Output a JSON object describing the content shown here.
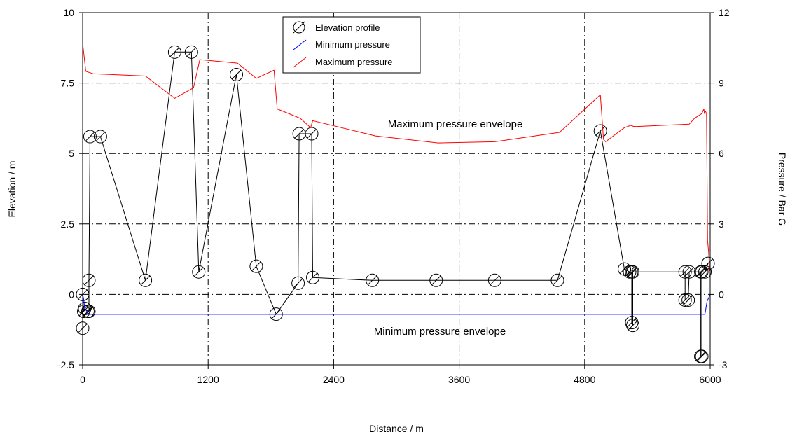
{
  "chart_data": {
    "type": "line",
    "title": "",
    "xlabel": "Distance / m",
    "ylabel_left": "Elevation / m",
    "ylabel_right": "Pressure / Bar G",
    "xlim": [
      0,
      6000
    ],
    "ylim_left": [
      -2.5,
      10
    ],
    "ylim_right": [
      -3,
      12
    ],
    "x_ticks": [
      "0",
      "1200",
      "2400",
      "3600",
      "4800",
      "6000"
    ],
    "y_left_ticks": [
      "-2.5",
      "0",
      "2.5",
      "5",
      "7.5",
      "10"
    ],
    "y_right_ticks": [
      "-3",
      "0",
      "3",
      "6",
      "9",
      "12"
    ],
    "grid": true,
    "legend_position": "top-center",
    "legend": [
      {
        "label": "Elevation profile",
        "color": "#000000"
      },
      {
        "label": "Minimum pressure",
        "color": "#0000ff"
      },
      {
        "label": "Maximum pressure",
        "color": "#ff0000"
      }
    ],
    "annotations": {
      "max_envelope": "Maximum pressure envelope",
      "min_envelope": "Minimum pressure envelope"
    },
    "series": [
      {
        "name": "Elevation profile",
        "axis": "left",
        "color": "#000000",
        "marker": "circle",
        "points": [
          [
            0,
            -1.2
          ],
          [
            0,
            0
          ],
          [
            10,
            -0.6
          ],
          [
            20,
            -0.5
          ],
          [
            50,
            -0.6
          ],
          [
            60,
            -0.6
          ],
          [
            60,
            0.5
          ],
          [
            70,
            5.6
          ],
          [
            170,
            5.6
          ],
          [
            600,
            0.5
          ],
          [
            880,
            8.6
          ],
          [
            1040,
            8.6
          ],
          [
            1110,
            0.8
          ],
          [
            1470,
            7.8
          ],
          [
            1660,
            1.0
          ],
          [
            1850,
            -0.7
          ],
          [
            2060,
            0.4
          ],
          [
            2070,
            5.7
          ],
          [
            2190,
            5.7
          ],
          [
            2200,
            0.6
          ],
          [
            2770,
            0.5
          ],
          [
            3380,
            0.5
          ],
          [
            3940,
            0.5
          ],
          [
            4540,
            0.5
          ],
          [
            4950,
            5.8
          ],
          [
            5180,
            0.9
          ],
          [
            5230,
            0.8
          ],
          [
            5250,
            0.8
          ],
          [
            5250,
            -1.0
          ],
          [
            5260,
            -1.1
          ],
          [
            5260,
            0.8
          ],
          [
            5760,
            0.8
          ],
          [
            5760,
            -0.2
          ],
          [
            5790,
            -0.2
          ],
          [
            5800,
            0.8
          ],
          [
            5910,
            0.8
          ],
          [
            5910,
            -2.2
          ],
          [
            5920,
            -2.2
          ],
          [
            5920,
            0.8
          ],
          [
            5950,
            0.8
          ],
          [
            5980,
            1.1
          ]
        ]
      },
      {
        "name": "Minimum pressure",
        "axis": "right",
        "color": "#0000ff",
        "points": [
          [
            0,
            0
          ],
          [
            10,
            -0.2
          ],
          [
            20,
            -0.6
          ],
          [
            60,
            -0.85
          ],
          [
            5950,
            -0.85
          ],
          [
            5970,
            -0.3
          ],
          [
            6000,
            0
          ]
        ]
      },
      {
        "name": "Maximum pressure",
        "axis": "right",
        "color": "#ff0000",
        "points": [
          [
            0,
            10.7
          ],
          [
            30,
            9.5
          ],
          [
            100,
            9.4
          ],
          [
            600,
            9.3
          ],
          [
            880,
            8.35
          ],
          [
            1060,
            8.8
          ],
          [
            1120,
            10.0
          ],
          [
            1480,
            9.85
          ],
          [
            1660,
            9.2
          ],
          [
            1830,
            9.55
          ],
          [
            1860,
            7.9
          ],
          [
            2080,
            7.5
          ],
          [
            2180,
            7.1
          ],
          [
            2200,
            7.4
          ],
          [
            2800,
            6.75
          ],
          [
            3400,
            6.45
          ],
          [
            3940,
            6.5
          ],
          [
            4560,
            6.9
          ],
          [
            4950,
            8.5
          ],
          [
            4980,
            6.6
          ],
          [
            5000,
            6.5
          ],
          [
            5180,
            7.1
          ],
          [
            5240,
            7.2
          ],
          [
            5270,
            7.15
          ],
          [
            5300,
            7.15
          ],
          [
            5800,
            7.25
          ],
          [
            5850,
            7.5
          ],
          [
            5920,
            7.7
          ],
          [
            5940,
            7.9
          ],
          [
            5945,
            7.7
          ],
          [
            5955,
            7.8
          ],
          [
            5965,
            7.7
          ],
          [
            5975,
            2.3
          ],
          [
            5985,
            1.8
          ],
          [
            5995,
            1.0
          ]
        ]
      }
    ]
  }
}
